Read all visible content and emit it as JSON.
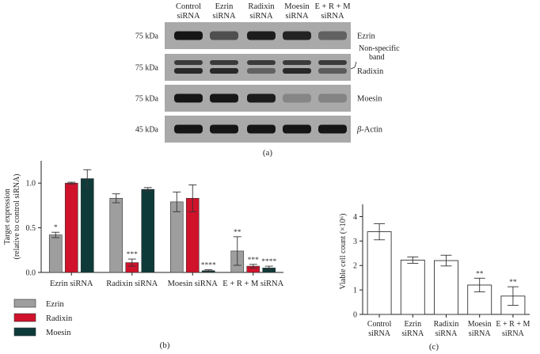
{
  "panel_a": {
    "lanes": [
      {
        "line1": "Control",
        "line2": "siRNA"
      },
      {
        "line1": "Ezrin",
        "line2": "siRNA"
      },
      {
        "line1": "Radixin",
        "line2": "siRNA"
      },
      {
        "line1": "Moesin",
        "line2": "siRNA"
      },
      {
        "line1": "E + R + M",
        "line2": "siRNA"
      }
    ],
    "rows": [
      {
        "kda": "75 kDa",
        "label": "Ezrin",
        "bands": [
          1.0,
          0.55,
          0.95,
          0.9,
          0.4
        ]
      },
      {
        "kda": "75 kDa",
        "label": "Radixin",
        "bands": [
          0.85,
          0.85,
          0.4,
          0.85,
          0.45
        ],
        "extra_label": "Non-specific band"
      },
      {
        "kda": "75 kDa",
        "label": "Moesin",
        "bands": [
          1.0,
          1.0,
          0.95,
          0.1,
          0.12
        ]
      },
      {
        "kda": "45 kDa",
        "label": "β-Actin",
        "bands": [
          1.0,
          1.0,
          1.0,
          1.0,
          1.0
        ]
      }
    ],
    "caption": "(a)"
  },
  "chart_data": [
    {
      "type": "bar",
      "ylabel": "Target expression (relative to control siRNA)",
      "ylim": [
        0,
        1.25
      ],
      "yticks": [
        "0.0",
        "0.5",
        "1.0"
      ],
      "categories": [
        "Ezrin siRNA",
        "Radixin siRNA",
        "Moesin siRNA",
        "E + R + M siRNA"
      ],
      "series": [
        {
          "name": "Ezrin",
          "color": "#9e9e9e",
          "values": [
            0.42,
            0.83,
            0.79,
            0.24
          ],
          "errors": [
            0.03,
            0.05,
            0.11,
            0.16
          ],
          "stars": [
            "*",
            "",
            "",
            "**"
          ]
        },
        {
          "name": "Radixin",
          "color": "#d0122b",
          "values": [
            1.0,
            0.11,
            0.83,
            0.07
          ],
          "errors": [
            0.01,
            0.04,
            0.15,
            0.02
          ],
          "stars": [
            "",
            "***",
            "",
            "***"
          ]
        },
        {
          "name": "Moesin",
          "color": "#0e3a3a",
          "values": [
            1.05,
            0.93,
            0.02,
            0.05
          ],
          "errors": [
            0.1,
            0.02,
            0.01,
            0.02
          ],
          "stars": [
            "",
            "",
            "****",
            "****"
          ]
        }
      ],
      "legend_position": "bottom-left",
      "caption": "(b)"
    },
    {
      "type": "bar",
      "ylabel": "Viable cell count (×10⁶)",
      "ylim": [
        0,
        4.5
      ],
      "yticks": [
        "0",
        "1",
        "2",
        "3",
        "4"
      ],
      "categories": [
        {
          "line1": "Control",
          "line2": "siRNA"
        },
        {
          "line1": "Ezrin",
          "line2": "siRNA"
        },
        {
          "line1": "Radixin",
          "line2": "siRNA"
        },
        {
          "line1": "Moesin",
          "line2": "siRNA"
        },
        {
          "line1": "E + R + M",
          "line2": "siRNA"
        }
      ],
      "values": [
        3.38,
        2.22,
        2.2,
        1.2,
        0.75
      ],
      "errors": [
        0.33,
        0.13,
        0.22,
        0.28,
        0.38
      ],
      "stars": [
        "",
        "",
        "",
        "**",
        "**"
      ],
      "bar_color": "#ffffff",
      "caption": "(c)"
    }
  ]
}
